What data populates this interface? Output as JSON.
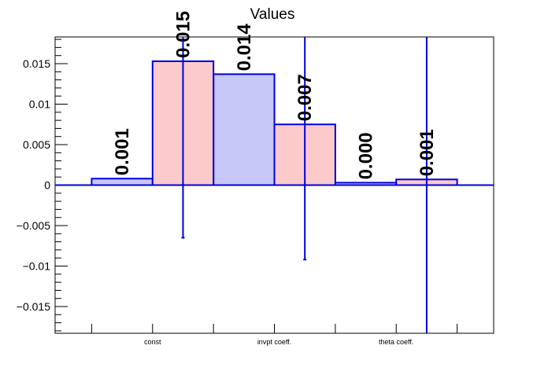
{
  "chart_data": {
    "type": "bar",
    "title": "Values",
    "xlabel": "",
    "ylabel": "",
    "ylim": [
      -0.0183,
      0.0183
    ],
    "grid": false,
    "categories": [
      "const",
      "invpt coeff.",
      "theta coeff."
    ],
    "y_ticks": [
      {
        "value": -0.015,
        "label": "−0.015"
      },
      {
        "value": -0.01,
        "label": "−0.01"
      },
      {
        "value": -0.005,
        "label": "−0.005"
      },
      {
        "value": 0,
        "label": "0"
      },
      {
        "value": 0.005,
        "label": "0.005"
      },
      {
        "value": 0.01,
        "label": "0.01"
      },
      {
        "value": 0.015,
        "label": "0.015"
      }
    ],
    "series": [
      {
        "values": [
          0.0008,
          0.0137,
          0.0003
        ],
        "labels": [
          "0.001",
          "0.014",
          "0.000"
        ],
        "fill": "#c8c8f8",
        "stroke": "#0000dd"
      },
      {
        "values": [
          0.0153,
          0.0075,
          0.0007
        ],
        "labels": [
          "0.015",
          "0.007",
          "0.001"
        ],
        "fill": "#fccaca",
        "stroke": "#0000dd",
        "error_low": [
          -0.0065,
          -0.0092,
          -0.0183
        ],
        "error_high": [
          0.0183,
          0.0183,
          0.0183
        ]
      }
    ],
    "colors": {
      "error_bar": "#0000dd",
      "zero_line": "#0000dd",
      "axis": "#000000"
    }
  }
}
